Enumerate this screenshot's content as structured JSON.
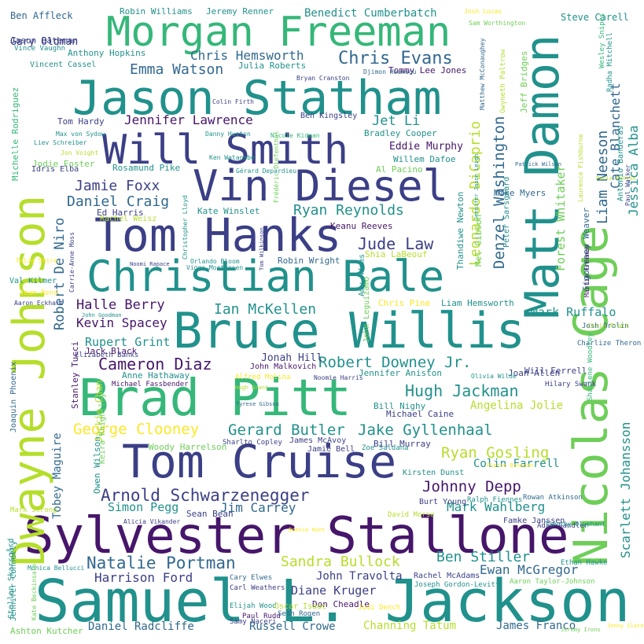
{
  "palette": {
    "dark_purple": "#46166a",
    "indigo": "#3b3f86",
    "blue": "#31688e",
    "teal": "#21918c",
    "green": "#35b779",
    "light_green": "#6ece58",
    "lime": "#b5de2b",
    "yellow": "#fde725"
  },
  "words": [
    "Samuel L. Jackson",
    "Sylvester Stallone",
    "Tom Cruise",
    "Brad Pitt",
    "Bruce Willis",
    "Christian Bale",
    "Tom Hanks",
    "Vin Diesel",
    "Will Smith",
    "Jason Statham",
    "Morgan Freeman",
    "Dwayne Johnson",
    "Matt Damon",
    "Nicolas Cage",
    "Arnold Schwarzenegger",
    "Natalie Portman",
    "Chris Evans",
    "Chris Hemsworth",
    "Emma Watson",
    "Jennifer Lawrence",
    "Jamie Foxx",
    "Daniel Craig",
    "Ryan Reynolds",
    "Jude Law",
    "Ian McKellen",
    "Halle Berry",
    "Kevin Spacey",
    "Rupert Grint",
    "Cameron Diaz",
    "Robert Downey Jr.",
    "Hugh Jackman",
    "Gerard Butler",
    "Jake Gyllenhaal",
    "George Clooney",
    "Ryan Gosling",
    "Johnny Depp",
    "Mark Wahlberg",
    "Simon Pegg",
    "Jim Carrey",
    "Sandra Bullock",
    "Ben Stiller",
    "Ewan McGregor",
    "Harrison Ford",
    "John Travolta",
    "Diane Kruger",
    "Daniel Radcliffe",
    "Russell Crowe",
    "Channing Tatum",
    "James Franco",
    "Benedict Cumberbatch",
    "Jet Li",
    "Mark Ruffalo",
    "Angelina Jolie",
    "Colin Farrell",
    "Eddie Murphy",
    "Robert De Niro",
    "Leonardo DiCaprio",
    "Denzel Washington",
    "Liam Neeson",
    "Cate Blanchett",
    "Jessica Alba",
    "Scarlett Johansson",
    "Forest Whitaker",
    "Tobey Maguire",
    "Gary Oldman",
    "Jonah Hill",
    "Ben Affleck",
    "Jason Bateman",
    "Robin Williams",
    "Jeremy Renner",
    "Steve Carell",
    "Anthony Hopkins",
    "Vincent Cassel",
    "Julia Roberts",
    "Tommy Lee Jones",
    "Tom Hardy",
    "Ben Kingsley",
    "Bradley Cooper",
    "Jodie Foster",
    "Rosamund Pike",
    "Idris Elba",
    "Willem Dafoe",
    "Al Pacino",
    "Mike Myers",
    "Ed Harris",
    "Kate Winslet",
    "Rachel Weisz",
    "Keanu Reeves",
    "Shia LaBeouf",
    "Robin Wright",
    "Jack Black",
    "John Malkovich",
    "Anne Hathaway",
    "Michael Fassbender",
    "Elizabeth Banks",
    "Jennifer Aniston",
    "Joan Allen",
    "Will Ferrell",
    "Liam Hemsworth",
    "Chris Pine",
    "Bill Nighy",
    "Michael Caine",
    "Bill Murray",
    "James McAvoy",
    "Woody Harrelson",
    "Kirsten Dunst",
    "Burt Young",
    "Jamie Bell",
    "Zoe Saldana",
    "Rachel McAdams",
    "Joseph Gordon-Levitt",
    "Don Cheadle",
    "Carl Weathers",
    "Elijah Wood",
    "Samy Naceri",
    "Paul Rudd",
    "Ashton Kutcher",
    "Cary Elwes",
    "Oscar Isaac",
    "Seth Rogen",
    "David Morse",
    "Famke Janssen",
    "Adam Sandler",
    "Ethan Hawke",
    "Aaron Taylor-Johnson",
    "Judi Dench",
    "Jenny Slate",
    "Jeremy Irons",
    "Colin Firth",
    "Bryan Cranston",
    "Djimon Hounsou",
    "Danny Huston",
    "Nicole Kidman",
    "Ken Watanabe",
    "Gérard Depardieu",
    "Frédéric Diefenthal",
    "Patrick Wilson",
    "Paula Patton",
    "Noomi Rapace",
    "Orlando Bloom",
    "Viggo Mortensen",
    "Tom Wilkinson",
    "Talia Shire",
    "Val Kilmer",
    "Jean Reno",
    "Aaron Eckhart",
    "Carrie-Anne Moss",
    "John Goodman",
    "Joaquin Phoenix",
    "Stanley Tucci",
    "Alfred Molina",
    "Noomie Harris",
    "Olivia Wilde",
    "Hilary Swank",
    "Hugh Grant",
    "Tyrese Gibson",
    "Pierce Brosnan",
    "Rowan Atkinson",
    "Ralph Fiennes",
    "Timothy Olyphant",
    "Alicia Vikander",
    "Sean Bean",
    "Mark Strong",
    "Monica Bellucci",
    "Jennifer Connelly",
    "Stellan Skarsgård",
    "Kate Beckinsale",
    "Max von Sydow",
    "Liev Schreiber",
    "Jon Voight",
    "Michelle Rodriguez",
    "Vince Vaughn",
    "Josh Lucas",
    "Sam Worthington",
    "Matthew McConaughey",
    "Gwyneth Paltrow",
    "Jeff Bridges",
    "Wesley Snipes",
    "Radha Mitchell",
    "Antonio Banderas",
    "Paul Walker",
    "Laurence Fishburne",
    "Sigourney Weaver",
    "Martin Freeman",
    "Josh Brolin",
    "Chris Pratt",
    "Charlize Theron",
    "Shailene Woodley",
    "Thandiwe Newton",
    "Jennifer Jason Leigh",
    "Mel Gibson",
    "Peter Sarsgaard",
    "Christopher Lloyd",
    "Amy Adams",
    "John Leguizamo",
    "Bonnie Hunt",
    "Owen Wilson",
    "Jackie Chan",
    "Keira Knightley",
    "Sharlto Copley"
  ]
}
